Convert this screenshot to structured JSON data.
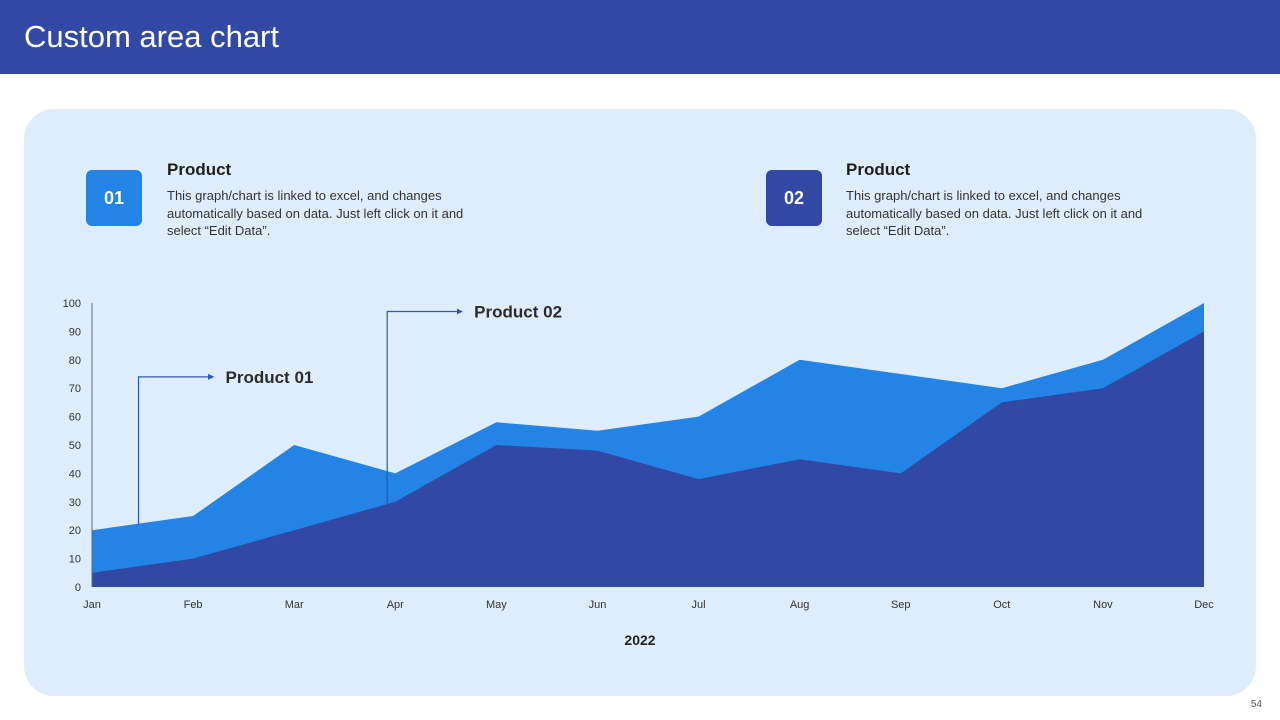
{
  "header": {
    "title": "Custom area chart"
  },
  "cards": [
    {
      "number": "01",
      "title": "Product",
      "description": "This graph/chart is linked to excel, and changes automatically based on data. Just left click on it and select “Edit Data”.",
      "color": "#2384e6"
    },
    {
      "number": "02",
      "title": "Product",
      "description": "This graph/chart is linked to excel, and changes automatically based on data. Just left click on it and select “Edit Data”.",
      "color": "#3148a5"
    }
  ],
  "page_number": "54",
  "chart_data": {
    "type": "area",
    "title": "",
    "xlabel": "2022",
    "ylabel": "",
    "categories": [
      "Jan",
      "Feb",
      "Mar",
      "Apr",
      "May",
      "Jun",
      "Jul",
      "Aug",
      "Sep",
      "Oct",
      "Nov",
      "Dec"
    ],
    "ylim": [
      0,
      100
    ],
    "yticks": [
      0,
      10,
      20,
      30,
      40,
      50,
      60,
      70,
      80,
      90,
      100
    ],
    "series": [
      {
        "name": "Product 01",
        "color": "#2384e6",
        "values": [
          20,
          25,
          50,
          40,
          58,
          55,
          60,
          80,
          75,
          70,
          80,
          100
        ]
      },
      {
        "name": "Product 02",
        "color": "#3148a5",
        "values": [
          5,
          10,
          20,
          30,
          50,
          48,
          38,
          45,
          40,
          65,
          70,
          90
        ]
      }
    ],
    "annotations": [
      {
        "label": "Product 01",
        "series": "Product 01",
        "anchor_value": 22,
        "label_value": 74,
        "x_index": 0.46
      },
      {
        "label": "Product 02",
        "series": "Product 02",
        "anchor_value": 29,
        "label_value": 97,
        "x_index": 2.92
      }
    ],
    "grid": false,
    "legend": "none"
  }
}
